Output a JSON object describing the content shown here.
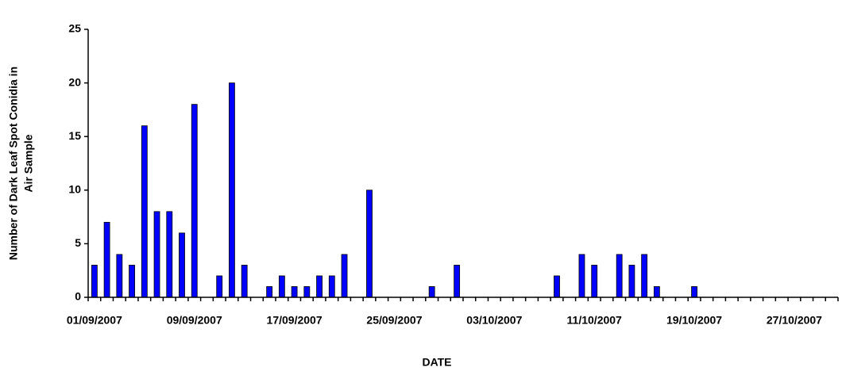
{
  "chart_data": {
    "type": "bar",
    "y_label": [
      "Number of Dark Leaf Spot Conidia in",
      "Air Sample"
    ],
    "x_label": "DATE",
    "categories": [
      "01/09/2007",
      null,
      null,
      null,
      null,
      null,
      null,
      null,
      "09/09/2007",
      null,
      null,
      null,
      null,
      null,
      null,
      null,
      "17/09/2007",
      null,
      null,
      null,
      null,
      null,
      null,
      null,
      "25/09/2007",
      null,
      null,
      null,
      null,
      null,
      null,
      null,
      "03/10/2007",
      null,
      null,
      null,
      null,
      null,
      null,
      null,
      "11/10/2007",
      null,
      null,
      null,
      null,
      null,
      null,
      null,
      "19/10/2007",
      null,
      null,
      null,
      null,
      null,
      null,
      null,
      "27/10/2007",
      null,
      null,
      null
    ],
    "values": [
      3,
      7,
      4,
      3,
      16,
      8,
      8,
      6,
      18,
      0,
      2,
      20,
      3,
      0,
      1,
      2,
      1,
      1,
      2,
      2,
      4,
      0,
      10,
      0,
      0,
      0,
      0,
      1,
      0,
      3,
      0,
      0,
      0,
      0,
      0,
      0,
      0,
      2,
      0,
      4,
      3,
      0,
      4,
      3,
      4,
      1,
      0,
      0,
      1,
      0,
      0,
      0,
      0,
      0,
      0,
      0,
      0,
      0,
      0,
      0
    ],
    "color": "#0000ff",
    "ylim": [
      0,
      25
    ],
    "yticks": [
      0,
      5,
      10,
      15,
      20,
      25
    ]
  }
}
